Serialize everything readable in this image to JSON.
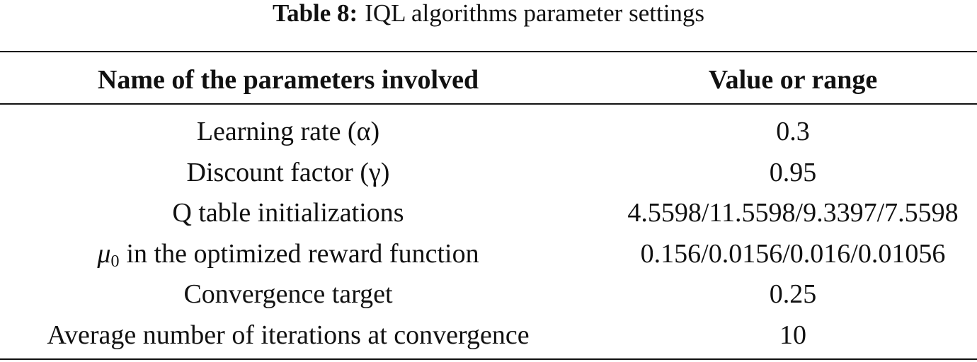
{
  "caption": {
    "label": "Table 8:",
    "text": "IQL algorithms parameter settings"
  },
  "table": {
    "header": [
      "Name of the parameters involved",
      "Value or range"
    ],
    "rows": [
      [
        "Learning rate (α)",
        "0.3"
      ],
      [
        "Discount factor (γ)",
        "0.95"
      ],
      [
        "Q table initializations",
        "4.5598/11.5598/9.3397/7.5598"
      ],
      [
        {
          "symbol": "μ",
          "subscript": "0",
          "text": "in the optimized reward function"
        },
        "0.156/0.0156/0.016/0.01056"
      ],
      [
        "Convergence target",
        "0.25"
      ],
      [
        "Average number of iterations at convergence",
        "10"
      ]
    ]
  }
}
